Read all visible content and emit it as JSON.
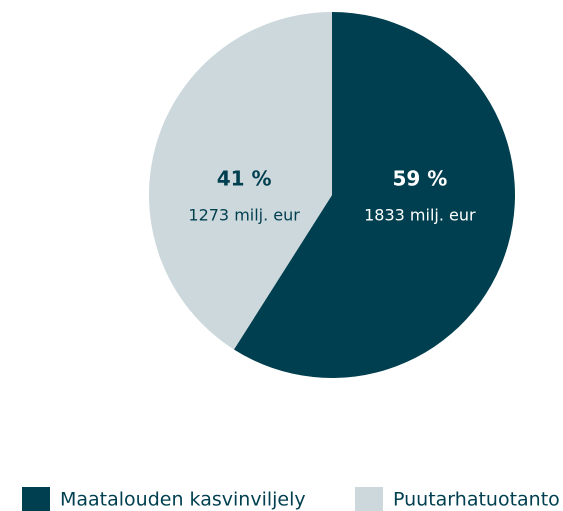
{
  "chart_data": {
    "type": "pie",
    "categories": [
      "Maatalouden kasvinviljely",
      "Puutarhatuotanto"
    ],
    "values": [
      59,
      41
    ],
    "value_labels": [
      "59 %",
      "41 %"
    ],
    "amount_labels": [
      "1833 milj. eur",
      "1273 milj. eur"
    ],
    "colors": [
      "#003f4f",
      "#ccd8dc"
    ],
    "label_colors": [
      "#ffffff",
      "#003f4f"
    ],
    "legend": "bottom"
  }
}
